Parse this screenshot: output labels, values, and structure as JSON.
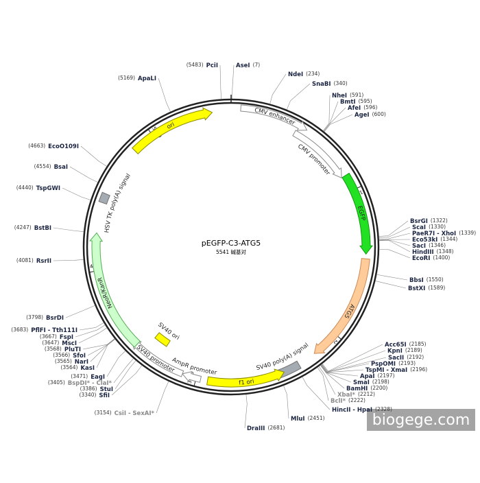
{
  "map": {
    "name": "pEGFP-C3-ATG5",
    "size_label": "5541 碱基对"
  },
  "features": [
    {
      "label": "ori"
    },
    {
      "label": "CMV enhancer"
    },
    {
      "label": "CMV promoter"
    },
    {
      "label": "EGFP"
    },
    {
      "label": "ATG5"
    },
    {
      "label": "SV40 poly(A) signal"
    },
    {
      "label": "f1 ori"
    },
    {
      "label": "AmpR promoter"
    },
    {
      "label": "SV40 promoter"
    },
    {
      "label": "SV40 ori"
    },
    {
      "label": "NeoR/KanR"
    },
    {
      "label": "HSV TK poly(A) signal"
    }
  ],
  "scale_labels": [
    "1000",
    "2000",
    "3000",
    "4000",
    "5000"
  ],
  "sites": {
    "right": [
      {
        "name": "AseI",
        "position": "(7)"
      },
      {
        "name": "NdeI",
        "position": "(234)"
      },
      {
        "name": "SnaBI",
        "position": "(340)"
      },
      {
        "name": "NheI",
        "position": "(591)"
      },
      {
        "name": "BmtI",
        "position": "(595)"
      },
      {
        "name": "AfeI",
        "position": "(596)"
      },
      {
        "name": "AgeI",
        "position": "(600)"
      },
      {
        "name": "BsrGI",
        "position": "(1322)"
      },
      {
        "name": "ScaI",
        "position": "(1330)"
      },
      {
        "name": "PaeR7I - XhoI",
        "position": "(1339)"
      },
      {
        "name": "Eco53kI",
        "position": "(1344)"
      },
      {
        "name": "SacI",
        "position": "(1346)"
      },
      {
        "name": "HindIII",
        "position": "(1348)"
      },
      {
        "name": "EcoRI",
        "position": "(1400)"
      },
      {
        "name": "BbsI",
        "position": "(1550)"
      },
      {
        "name": "BstXI",
        "position": "(1589)"
      },
      {
        "name": "Acc65I",
        "position": "(2185)"
      },
      {
        "name": "KpnI",
        "position": "(2189)"
      },
      {
        "name": "SacII",
        "position": "(2192)"
      },
      {
        "name": "PspOMI",
        "position": "(2193)"
      },
      {
        "name": "TspMI - XmaI",
        "position": "(2196)"
      },
      {
        "name": "ApaI",
        "position": "(2197)"
      },
      {
        "name": "SmaI",
        "position": "(2198)"
      },
      {
        "name": "BamHI",
        "position": "(2200)"
      },
      {
        "name": "XbaI*",
        "position": "(2212)"
      },
      {
        "name": "BclI*",
        "position": "(2222)"
      },
      {
        "name": "HincII - HpaI",
        "position": "(2328)"
      },
      {
        "name": "MluI",
        "position": "(2451)"
      },
      {
        "name": "DraIII",
        "position": "(2681)"
      }
    ],
    "left": [
      {
        "name": "PciI",
        "position": "(5483)"
      },
      {
        "name": "ApaLI",
        "position": "(5169)"
      },
      {
        "name": "EcoO109I",
        "position": "(4663)"
      },
      {
        "name": "BsaI",
        "position": "(4554)"
      },
      {
        "name": "TspGWI",
        "position": "(4440)"
      },
      {
        "name": "BstBI",
        "position": "(4247)"
      },
      {
        "name": "RsrII",
        "position": "(4081)"
      },
      {
        "name": "BsrDI",
        "position": "(3798)"
      },
      {
        "name": "PflFI - Tth111I",
        "position": "(3683)"
      },
      {
        "name": "FspI",
        "position": "(3667)"
      },
      {
        "name": "MscI",
        "position": "(3647)"
      },
      {
        "name": "PluTI",
        "position": "(3568)"
      },
      {
        "name": "SfoI",
        "position": "(3566)"
      },
      {
        "name": "NarI",
        "position": "(3565)"
      },
      {
        "name": "KasI",
        "position": "(3564)"
      },
      {
        "name": "EagI",
        "position": "(3471)"
      },
      {
        "name": "BspDI* - ClaI*",
        "position": "(3405)"
      },
      {
        "name": "StuI",
        "position": "(3386)"
      },
      {
        "name": "SfiI",
        "position": "(3340)"
      },
      {
        "name": "CsiI - SexAI*",
        "position": "(3154)"
      }
    ]
  },
  "watermark": "biogege.com"
}
